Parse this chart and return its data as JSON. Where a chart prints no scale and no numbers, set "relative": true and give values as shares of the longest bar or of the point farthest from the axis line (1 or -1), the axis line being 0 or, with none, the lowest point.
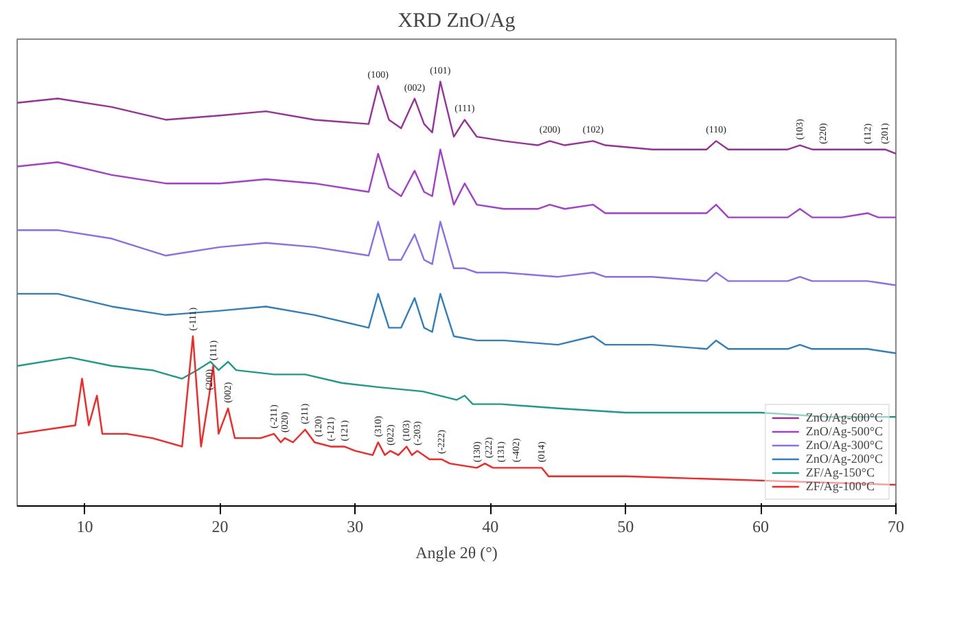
{
  "chart_data": {
    "type": "line",
    "title": "XRD ZnO/Ag",
    "xlabel": "Angle 2θ (°)",
    "relative": true,
    "xlim": [
      5,
      70
    ],
    "xticks": [
      10,
      20,
      30,
      40,
      50,
      60,
      70
    ],
    "grid": false,
    "legend": "bottom right",
    "line_style": "solid",
    "marker": "none",
    "series": [
      {
        "name": "ZnO/Ag-600°C",
        "color": "#9a2e9a",
        "x": [
          5,
          8,
          12,
          16,
          20,
          23.4,
          27,
          31,
          31.7,
          32.5,
          33.4,
          34.4,
          35.1,
          35.7,
          36.3,
          37.3,
          38.1,
          39,
          41,
          43.5,
          44.4,
          45.5,
          47.6,
          48.5,
          52,
          56,
          56.7,
          57.6,
          62,
          62.9,
          63.8,
          64.6,
          66,
          67.9,
          68.7,
          69.2,
          70
        ],
        "values": [
          0.95,
          0.96,
          0.94,
          0.91,
          0.92,
          0.93,
          0.91,
          0.9,
          0.99,
          0.91,
          0.89,
          0.96,
          0.9,
          0.88,
          1.0,
          0.87,
          0.91,
          0.87,
          0.86,
          0.85,
          0.86,
          0.85,
          0.86,
          0.85,
          0.84,
          0.84,
          0.86,
          0.84,
          0.84,
          0.85,
          0.84,
          0.84,
          0.84,
          0.84,
          0.84,
          0.84,
          0.83
        ]
      },
      {
        "name": "ZnO/Ag-500°C",
        "color": "#a43cd2",
        "x": [
          5,
          8,
          12,
          16,
          20,
          23.4,
          27,
          31,
          31.7,
          32.5,
          33.4,
          34.4,
          35.1,
          35.7,
          36.3,
          37.3,
          38.1,
          39,
          41,
          43.5,
          44.4,
          45.5,
          47.6,
          48.5,
          52,
          56,
          56.7,
          57.6,
          62,
          62.9,
          63.8,
          64.6,
          66,
          67.9,
          68.7,
          70
        ],
        "values": [
          0.8,
          0.81,
          0.78,
          0.76,
          0.76,
          0.77,
          0.76,
          0.74,
          0.83,
          0.75,
          0.73,
          0.79,
          0.74,
          0.73,
          0.84,
          0.71,
          0.76,
          0.71,
          0.7,
          0.7,
          0.71,
          0.7,
          0.71,
          0.69,
          0.69,
          0.69,
          0.71,
          0.68,
          0.68,
          0.7,
          0.68,
          0.68,
          0.68,
          0.69,
          0.68,
          0.68
        ]
      },
      {
        "name": "ZnO/Ag-300°C",
        "color": "#8a6cf0",
        "x": [
          5,
          8,
          12,
          16,
          20,
          23.4,
          27,
          31,
          31.7,
          32.5,
          33.4,
          34.4,
          35.1,
          35.7,
          36.3,
          37.3,
          38.1,
          39,
          41,
          45,
          47.6,
          48.5,
          52,
          56,
          56.7,
          57.6,
          62,
          62.9,
          63.8,
          67.9,
          70
        ],
        "values": [
          0.65,
          0.65,
          0.63,
          0.59,
          0.61,
          0.62,
          0.61,
          0.59,
          0.67,
          0.58,
          0.58,
          0.64,
          0.58,
          0.57,
          0.67,
          0.56,
          0.56,
          0.55,
          0.55,
          0.54,
          0.55,
          0.54,
          0.54,
          0.53,
          0.55,
          0.53,
          0.53,
          0.54,
          0.53,
          0.53,
          0.52
        ]
      },
      {
        "name": "ZnO/Ag-200°C",
        "color": "#2e7ec0",
        "x": [
          5,
          8,
          12,
          16,
          20,
          23.4,
          27,
          31,
          31.7,
          32.5,
          33.4,
          34.4,
          35.1,
          35.7,
          36.3,
          37.3,
          39,
          41,
          45,
          47.6,
          48.5,
          52,
          56,
          56.7,
          57.6,
          62,
          62.9,
          63.8,
          67.9,
          70
        ],
        "values": [
          0.5,
          0.5,
          0.47,
          0.45,
          0.46,
          0.47,
          0.45,
          0.42,
          0.5,
          0.42,
          0.42,
          0.49,
          0.42,
          0.41,
          0.5,
          0.4,
          0.39,
          0.39,
          0.38,
          0.4,
          0.38,
          0.38,
          0.37,
          0.39,
          0.37,
          0.37,
          0.38,
          0.37,
          0.37,
          0.36
        ]
      },
      {
        "name": "ZF/Ag-150°C",
        "color": "#1a9a8a",
        "x": [
          5,
          8.9,
          12,
          15,
          17.2,
          18.3,
          19.3,
          19.9,
          20.6,
          21.2,
          24,
          26.3,
          29,
          31.7,
          35,
          37.5,
          38.1,
          38.7,
          40.8,
          45,
          50,
          55,
          60,
          65,
          70
        ],
        "values": [
          0.33,
          0.35,
          0.33,
          0.32,
          0.3,
          0.32,
          0.34,
          0.32,
          0.34,
          0.32,
          0.31,
          0.31,
          0.29,
          0.28,
          0.27,
          0.25,
          0.26,
          0.24,
          0.24,
          0.23,
          0.22,
          0.22,
          0.22,
          0.21,
          0.21
        ]
      },
      {
        "name": "ZF/Ag-100°C",
        "color": "#ff2020",
        "x": [
          5,
          9.3,
          9.8,
          10.3,
          10.9,
          11.3,
          13.1,
          15,
          17.2,
          18.0,
          18.6,
          19.2,
          19.5,
          19.9,
          20.6,
          21.1,
          23,
          24.0,
          24.5,
          24.8,
          25.4,
          26.3,
          27.0,
          28.2,
          29.2,
          30,
          31.3,
          31.7,
          32.2,
          32.6,
          33.2,
          33.8,
          34.2,
          34.6,
          35.5,
          36.4,
          37,
          39,
          39.6,
          40.2,
          40.8,
          41.9,
          43.8,
          44.3,
          50,
          60,
          70
        ],
        "values": [
          0.17,
          0.19,
          0.3,
          0.19,
          0.26,
          0.17,
          0.17,
          0.16,
          0.14,
          0.4,
          0.14,
          0.26,
          0.33,
          0.17,
          0.23,
          0.16,
          0.16,
          0.17,
          0.15,
          0.16,
          0.15,
          0.18,
          0.15,
          0.14,
          0.14,
          0.13,
          0.12,
          0.15,
          0.12,
          0.13,
          0.12,
          0.14,
          0.12,
          0.13,
          0.11,
          0.11,
          0.1,
          0.09,
          0.1,
          0.09,
          0.09,
          0.09,
          0.09,
          0.07,
          0.07,
          0.06,
          0.05
        ]
      }
    ],
    "annotations": [
      {
        "text": "(100)",
        "x": 31.7,
        "y": 0.99
      },
      {
        "text": "(002)",
        "x": 34.4,
        "y": 0.96
      },
      {
        "text": "(101)",
        "x": 36.3,
        "y": 1.0
      },
      {
        "text": "(111)",
        "x": 38.1,
        "y": 0.91
      },
      {
        "text": "(200)",
        "x": 44.4,
        "y": 0.86
      },
      {
        "text": "(102)",
        "x": 47.6,
        "y": 0.86
      },
      {
        "text": "(110)",
        "x": 56.7,
        "y": 0.86
      },
      {
        "text": "(103)",
        "x": 62.9,
        "y": 0.85
      },
      {
        "text": "(220)",
        "x": 64.6,
        "y": 0.84
      },
      {
        "text": "(112)",
        "x": 67.9,
        "y": 0.84
      },
      {
        "text": "(201)",
        "x": 69.2,
        "y": 0.84
      },
      {
        "text": "(-111)",
        "x": 18.0,
        "y": 0.4
      },
      {
        "text": "(200)",
        "x": 19.2,
        "y": 0.26
      },
      {
        "text": "(111)",
        "x": 19.5,
        "y": 0.33
      },
      {
        "text": "(002)",
        "x": 20.6,
        "y": 0.23
      },
      {
        "text": "(-211)",
        "x": 24.0,
        "y": 0.17
      },
      {
        "text": "(020)",
        "x": 24.8,
        "y": 0.16
      },
      {
        "text": "(211)",
        "x": 26.3,
        "y": 0.18
      },
      {
        "text": "(120)",
        "x": 27.0,
        "y": 0.15
      },
      {
        "text": "(-121)",
        "x": 28.2,
        "y": 0.14
      },
      {
        "text": "(121)",
        "x": 29.2,
        "y": 0.14
      },
      {
        "text": "(310)",
        "x": 31.7,
        "y": 0.15
      },
      {
        "text": "(022)",
        "x": 32.6,
        "y": 0.13
      },
      {
        "text": "(103)",
        "x": 33.8,
        "y": 0.14
      },
      {
        "text": "(-203)",
        "x": 34.6,
        "y": 0.13
      },
      {
        "text": "(-222)",
        "x": 36.4,
        "y": 0.11
      },
      {
        "text": "(130)",
        "x": 39.0,
        "y": 0.09
      },
      {
        "text": "(222)",
        "x": 39.6,
        "y": 0.1
      },
      {
        "text": "(131)",
        "x": 40.8,
        "y": 0.09
      },
      {
        "text": "(-402)",
        "x": 41.9,
        "y": 0.09
      },
      {
        "text": "(014)",
        "x": 43.8,
        "y": 0.09
      }
    ]
  }
}
